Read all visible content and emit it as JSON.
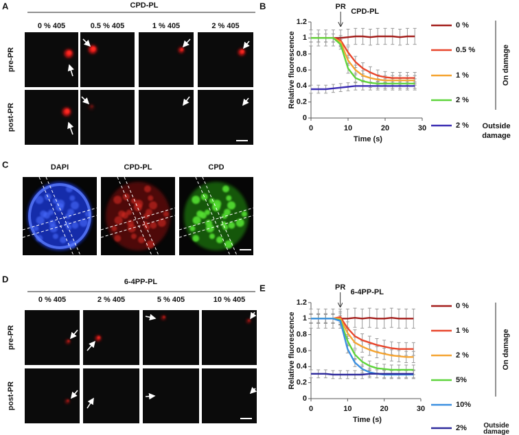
{
  "panels": {
    "a": {
      "letter": "A",
      "header": "CPD-PL",
      "columns": [
        "0 % 405",
        "0.5 % 405",
        "1 % 405",
        "2 % 405"
      ],
      "rows": [
        "pre-PR",
        "post-PR"
      ]
    },
    "b": {
      "letter": "B"
    },
    "c": {
      "letter": "C",
      "columns": [
        "DAPI",
        "CPD-PL",
        "CPD"
      ]
    },
    "d": {
      "letter": "D",
      "header": "6-4PP-PL",
      "columns": [
        "0 % 405",
        "2 % 405",
        "5 % 405",
        "10 % 405"
      ],
      "rows": [
        "pre-PR",
        "post-PR"
      ]
    },
    "e": {
      "letter": "E"
    }
  },
  "chart_data": [
    {
      "type": "line",
      "title": "CPD-PL",
      "annotation": {
        "text": "PR",
        "x": 8
      },
      "x_label": "Time (s)",
      "y_label": "Relative fluorescence",
      "x": [
        0,
        2,
        4,
        6,
        8,
        10,
        12,
        14,
        16,
        18,
        20,
        22,
        24,
        26,
        28
      ],
      "xlim": [
        0,
        30
      ],
      "xticks": [
        0,
        10,
        20,
        30
      ],
      "ylim": [
        0,
        1.2
      ],
      "yticks": [
        0,
        0.2,
        0.4,
        0.6,
        0.8,
        1,
        1.2
      ],
      "group_labels": [
        "On damage",
        "Outside damage"
      ],
      "series": [
        {
          "name": "0 %",
          "color": "#a31d1a",
          "values": [
            1,
            1,
            1,
            1,
            1,
            1.01,
            1.02,
            1.02,
            1.01,
            1.02,
            1.02,
            1.02,
            1.01,
            1.02,
            1.02
          ],
          "errors": [
            0.1,
            0.1,
            0.1,
            0.1,
            0.1,
            0.1,
            0.1,
            0.1,
            0.1,
            0.1,
            0.1,
            0.1,
            0.1,
            0.1,
            0.1
          ]
        },
        {
          "name": "0.5 %",
          "color": "#e8452b",
          "values": [
            1,
            1,
            1,
            1,
            0.97,
            0.82,
            0.7,
            0.62,
            0.57,
            0.53,
            0.51,
            0.5,
            0.5,
            0.5,
            0.5
          ],
          "errors": [
            0.05,
            0.05,
            0.05,
            0.05,
            0.06,
            0.07,
            0.07,
            0.07,
            0.07,
            0.07,
            0.07,
            0.07,
            0.07,
            0.07,
            0.07
          ]
        },
        {
          "name": "1 %",
          "color": "#f5a431",
          "values": [
            1,
            1,
            1,
            1,
            0.95,
            0.72,
            0.6,
            0.53,
            0.5,
            0.48,
            0.47,
            0.47,
            0.47,
            0.47,
            0.47
          ],
          "errors": [
            0.05,
            0.05,
            0.05,
            0.05,
            0.06,
            0.06,
            0.06,
            0.06,
            0.06,
            0.06,
            0.06,
            0.06,
            0.06,
            0.06,
            0.06
          ]
        },
        {
          "name": "2 %",
          "color": "#5ed43b",
          "values": [
            1,
            1,
            1,
            1,
            0.92,
            0.62,
            0.5,
            0.46,
            0.44,
            0.43,
            0.43,
            0.43,
            0.43,
            0.43,
            0.43
          ],
          "errors": [
            0.05,
            0.05,
            0.05,
            0.05,
            0.06,
            0.06,
            0.06,
            0.06,
            0.06,
            0.06,
            0.06,
            0.06,
            0.06,
            0.06,
            0.06
          ]
        },
        {
          "name": "2 %",
          "color": "#3b2db3",
          "values": [
            0.36,
            0.36,
            0.36,
            0.37,
            0.38,
            0.39,
            0.4,
            0.4,
            0.4,
            0.4,
            0.4,
            0.4,
            0.4,
            0.4,
            0.4
          ],
          "errors": [
            0.05,
            0.05,
            0.05,
            0.05,
            0.05,
            0.05,
            0.05,
            0.05,
            0.05,
            0.05,
            0.05,
            0.05,
            0.05,
            0.05,
            0.05
          ]
        }
      ]
    },
    {
      "type": "line",
      "title": "6-4PP-PL",
      "annotation": {
        "text": "PR",
        "x": 8
      },
      "x_label": "Time (s)",
      "y_label": "Relative fluorescence",
      "x": [
        0,
        2,
        4,
        6,
        8,
        10,
        12,
        14,
        16,
        18,
        20,
        22,
        24,
        26,
        28
      ],
      "xlim": [
        0,
        30
      ],
      "xticks": [
        0,
        10,
        20,
        30
      ],
      "ylim": [
        0,
        1.2
      ],
      "yticks": [
        0,
        0.2,
        0.4,
        0.6,
        0.8,
        1,
        1.2
      ],
      "group_labels": [
        "On damage",
        "Outside damage"
      ],
      "series": [
        {
          "name": "0 %",
          "color": "#a31d1a",
          "values": [
            1,
            1,
            1,
            1,
            1,
            1,
            1.01,
            1,
            1.01,
            1,
            1,
            1.01,
            1,
            1,
            1
          ],
          "errors": [
            0.12,
            0.12,
            0.12,
            0.12,
            0.12,
            0.12,
            0.12,
            0.12,
            0.12,
            0.12,
            0.12,
            0.12,
            0.12,
            0.12,
            0.12
          ]
        },
        {
          "name": "1 %",
          "color": "#e8452b",
          "values": [
            1,
            1,
            1,
            1,
            1.02,
            0.88,
            0.78,
            0.73,
            0.7,
            0.67,
            0.65,
            0.63,
            0.62,
            0.62,
            0.62
          ],
          "errors": [
            0.06,
            0.06,
            0.06,
            0.06,
            0.07,
            0.08,
            0.08,
            0.08,
            0.08,
            0.08,
            0.08,
            0.08,
            0.08,
            0.08,
            0.08
          ]
        },
        {
          "name": "2 %",
          "color": "#f5a431",
          "values": [
            1,
            1,
            1,
            1,
            1,
            0.82,
            0.7,
            0.65,
            0.61,
            0.58,
            0.56,
            0.54,
            0.53,
            0.52,
            0.52
          ],
          "errors": [
            0.06,
            0.06,
            0.06,
            0.06,
            0.07,
            0.07,
            0.07,
            0.07,
            0.07,
            0.07,
            0.07,
            0.07,
            0.07,
            0.07,
            0.07
          ]
        },
        {
          "name": "5%",
          "color": "#5ed43b",
          "values": [
            1,
            1,
            1,
            1,
            0.98,
            0.72,
            0.55,
            0.46,
            0.41,
            0.38,
            0.37,
            0.36,
            0.36,
            0.36,
            0.36
          ],
          "errors": [
            0.06,
            0.06,
            0.06,
            0.06,
            0.06,
            0.06,
            0.06,
            0.06,
            0.06,
            0.06,
            0.06,
            0.06,
            0.06,
            0.06,
            0.06
          ]
        },
        {
          "name": "10%",
          "color": "#3a8fe0",
          "values": [
            1,
            1,
            1,
            1,
            0.97,
            0.62,
            0.45,
            0.37,
            0.33,
            0.31,
            0.3,
            0.3,
            0.3,
            0.3,
            0.3
          ],
          "errors": [
            0.05,
            0.05,
            0.05,
            0.05,
            0.05,
            0.05,
            0.05,
            0.05,
            0.05,
            0.05,
            0.05,
            0.05,
            0.05,
            0.05,
            0.05
          ]
        },
        {
          "name": "2%",
          "color": "#2e2a9c",
          "values": [
            0.31,
            0.31,
            0.31,
            0.3,
            0.3,
            0.3,
            0.3,
            0.3,
            0.31,
            0.31,
            0.31,
            0.31,
            0.31,
            0.31,
            0.31
          ],
          "errors": [
            0.05,
            0.05,
            0.05,
            0.05,
            0.05,
            0.05,
            0.05,
            0.05,
            0.05,
            0.05,
            0.05,
            0.05,
            0.05,
            0.05,
            0.05
          ]
        }
      ]
    }
  ]
}
